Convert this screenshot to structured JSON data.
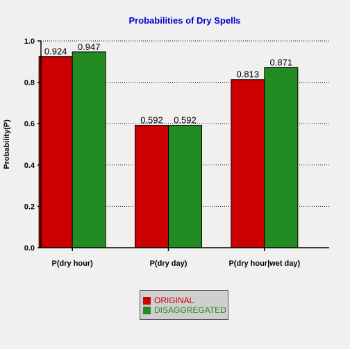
{
  "chart_data": {
    "type": "bar",
    "title": "Probabilities of Dry Spells",
    "xlabel": "",
    "ylabel": "Probability(P)",
    "ylim": [
      0,
      1.0
    ],
    "yticks": [
      "0.0",
      "0.2",
      "0.4",
      "0.6",
      "0.8",
      "1.0"
    ],
    "categories": [
      "P(dry hour)",
      "P(dry day)",
      "P(dry hour|wet day)"
    ],
    "series": [
      {
        "name": "ORIGINAL",
        "values": [
          0.924,
          0.592,
          0.813
        ],
        "labels": [
          "0.924",
          "0.592",
          "0.813"
        ],
        "color": "#cc0000"
      },
      {
        "name": "DISAGGREGATED",
        "values": [
          0.947,
          0.592,
          0.871
        ],
        "labels": [
          "0.947",
          "0.592",
          "0.871"
        ],
        "color": "#228b22"
      }
    ],
    "grid": "horizontal dotted",
    "legend_position": "bottom-center"
  },
  "colors": {
    "title": "#0000cc",
    "original": "#cc0000",
    "disaggregated": "#228b22"
  }
}
